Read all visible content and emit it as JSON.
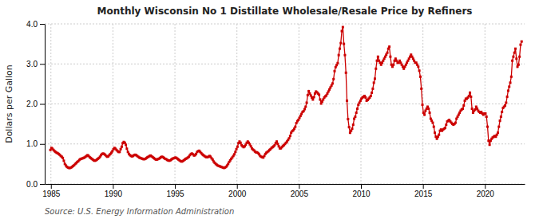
{
  "chart_data": {
    "type": "line",
    "title": "Monthly Wisconsin No 1 Distillate Wholesale/Resale Price by Refiners",
    "y_label": "Dollars per Gallon",
    "source": "Source: U.S. Energy Information Administration",
    "color": "#cc0000",
    "marker": "square",
    "grid": true,
    "xlim": [
      1984.5,
      2023.2
    ],
    "ylim": [
      0.0,
      4.0
    ],
    "xticks": [
      1985,
      1990,
      1995,
      2000,
      2005,
      2010,
      2015,
      2020
    ],
    "yticks": [
      {
        "value": 0.0,
        "label": "0.0"
      },
      {
        "value": 1.0,
        "label": "1.0"
      },
      {
        "value": 2.0,
        "label": "2.0"
      },
      {
        "value": 3.0,
        "label": "3.0"
      },
      {
        "value": 4.0,
        "label": "4.0"
      }
    ],
    "x": [
      1984.9583333333333,
      1985.0416666666667,
      1985.125,
      1985.2083333333333,
      1985.2916666666667,
      1985.375,
      1985.4583333333333,
      1985.5416666666667,
      1985.625,
      1985.7083333333333,
      1985.7916666666667,
      1985.875,
      1985.9583333333333,
      1986.0416666666667,
      1986.125,
      1986.2083333333333,
      1986.2916666666667,
      1986.375,
      1986.4583333333333,
      1986.5416666666667,
      1986.625,
      1986.7083333333333,
      1986.7916666666667,
      1986.875,
      1986.9583333333333,
      1987.0416666666667,
      1987.125,
      1987.2083333333333,
      1987.2916666666667,
      1987.375,
      1987.4583333333333,
      1987.5416666666667,
      1987.625,
      1987.7083333333333,
      1987.7916666666667,
      1987.875,
      1987.9583333333333,
      1988.0416666666667,
      1988.125,
      1988.2083333333333,
      1988.2916666666667,
      1988.375,
      1988.4583333333333,
      1988.5416666666667,
      1988.625,
      1988.7083333333333,
      1988.7916666666667,
      1988.875,
      1988.9583333333333,
      1989.0416666666667,
      1989.125,
      1989.2083333333333,
      1989.2916666666667,
      1989.375,
      1989.4583333333333,
      1989.5416666666667,
      1989.625,
      1989.7083333333333,
      1989.7916666666667,
      1989.875,
      1989.9583333333333,
      1990.0416666666667,
      1990.125,
      1990.2083333333333,
      1990.2916666666667,
      1990.375,
      1990.4583333333333,
      1990.5416666666667,
      1990.625,
      1990.7083333333333,
      1990.7916666666667,
      1990.875,
      1990.9583333333333,
      1991.0416666666667,
      1991.125,
      1991.2083333333333,
      1991.2916666666667,
      1991.375,
      1991.4583333333333,
      1991.5416666666667,
      1991.625,
      1991.7083333333333,
      1991.7916666666667,
      1991.875,
      1991.9583333333333,
      1992.0416666666667,
      1992.125,
      1992.2083333333333,
      1992.2916666666667,
      1992.375,
      1992.4583333333333,
      1992.5416666666667,
      1992.625,
      1992.7083333333333,
      1992.7916666666667,
      1992.875,
      1992.9583333333333,
      1993.0416666666667,
      1993.125,
      1993.2083333333333,
      1993.2916666666667,
      1993.375,
      1993.4583333333333,
      1993.5416666666667,
      1993.625,
      1993.7083333333333,
      1993.7916666666667,
      1993.875,
      1993.9583333333333,
      1994.0416666666667,
      1994.125,
      1994.2083333333333,
      1994.2916666666667,
      1994.375,
      1994.4583333333333,
      1994.5416666666667,
      1994.625,
      1994.7083333333333,
      1994.7916666666667,
      1994.875,
      1994.9583333333333,
      1995.0416666666667,
      1995.125,
      1995.2083333333333,
      1995.2916666666667,
      1995.375,
      1995.4583333333333,
      1995.5416666666667,
      1995.625,
      1995.7083333333333,
      1995.7916666666667,
      1995.875,
      1995.9583333333333,
      1996.0416666666667,
      1996.125,
      1996.2083333333333,
      1996.2916666666667,
      1996.375,
      1996.4583333333333,
      1996.5416666666667,
      1996.625,
      1996.7083333333333,
      1996.7916666666667,
      1996.875,
      1996.9583333333333,
      1997.0416666666667,
      1997.125,
      1997.2083333333333,
      1997.2916666666667,
      1997.375,
      1997.4583333333333,
      1997.5416666666667,
      1997.625,
      1997.7083333333333,
      1997.7916666666667,
      1997.875,
      1997.9583333333333,
      1998.0416666666667,
      1998.125,
      1998.2083333333333,
      1998.2916666666667,
      1998.375,
      1998.4583333333333,
      1998.5416666666667,
      1998.625,
      1998.7083333333333,
      1998.7916666666667,
      1998.875,
      1998.9583333333333,
      1999.0416666666667,
      1999.125,
      1999.2083333333333,
      1999.2916666666667,
      1999.375,
      1999.4583333333333,
      1999.5416666666667,
      1999.625,
      1999.7083333333333,
      1999.7916666666667,
      1999.875,
      1999.9583333333333,
      2000.0416666666667,
      2000.125,
      2000.2083333333333,
      2000.2916666666667,
      2000.375,
      2000.4583333333333,
      2000.5416666666667,
      2000.625,
      2000.7083333333333,
      2000.7916666666667,
      2000.875,
      2000.9583333333333,
      2001.0416666666667,
      2001.125,
      2001.2083333333333,
      2001.2916666666667,
      2001.375,
      2001.4583333333333,
      2001.5416666666667,
      2001.625,
      2001.7083333333333,
      2001.7916666666667,
      2001.875,
      2001.9583333333333,
      2002.0416666666667,
      2002.125,
      2002.2083333333333,
      2002.2916666666667,
      2002.375,
      2002.4583333333333,
      2002.5416666666667,
      2002.625,
      2002.7083333333333,
      2002.7916666666667,
      2002.875,
      2002.9583333333333,
      2003.0416666666667,
      2003.125,
      2003.2083333333333,
      2003.2916666666667,
      2003.375,
      2003.4583333333333,
      2003.5416666666667,
      2003.625,
      2003.7083333333333,
      2003.7916666666667,
      2003.875,
      2003.9583333333333,
      2004.0416666666667,
      2004.125,
      2004.2083333333333,
      2004.2916666666667,
      2004.375,
      2004.4583333333333,
      2004.5416666666667,
      2004.625,
      2004.7083333333333,
      2004.7916666666667,
      2004.875,
      2004.9583333333333,
      2005.0416666666667,
      2005.125,
      2005.2083333333333,
      2005.2916666666667,
      2005.375,
      2005.4583333333333,
      2005.5416666666667,
      2005.625,
      2005.7083333333333,
      2005.7916666666667,
      2005.875,
      2005.9583333333333,
      2006.0416666666667,
      2006.125,
      2006.2083333333333,
      2006.2916666666667,
      2006.375,
      2006.4583333333333,
      2006.5416666666667,
      2006.625,
      2006.7083333333333,
      2006.7916666666667,
      2006.875,
      2006.9583333333333,
      2007.0416666666667,
      2007.125,
      2007.2083333333333,
      2007.2916666666667,
      2007.375,
      2007.4583333333333,
      2007.5416666666667,
      2007.625,
      2007.7083333333333,
      2007.7916666666667,
      2007.875,
      2007.9583333333333,
      2008.0416666666667,
      2008.125,
      2008.2083333333333,
      2008.2916666666667,
      2008.375,
      2008.4583333333333,
      2008.5416666666667,
      2008.625,
      2008.7083333333333,
      2008.7916666666667,
      2008.875,
      2008.9583333333333,
      2009.0416666666667,
      2009.125,
      2009.2083333333333,
      2009.2916666666667,
      2009.375,
      2009.4583333333333,
      2009.5416666666667,
      2009.625,
      2009.7083333333333,
      2009.7916666666667,
      2009.875,
      2009.9583333333333,
      2010.0416666666667,
      2010.125,
      2010.2083333333333,
      2010.2916666666667,
      2010.375,
      2010.4583333333333,
      2010.5416666666667,
      2010.625,
      2010.7083333333333,
      2010.7916666666667,
      2010.875,
      2010.9583333333333,
      2011.0416666666667,
      2011.125,
      2011.2083333333333,
      2011.2916666666667,
      2011.375,
      2011.4583333333333,
      2011.5416666666667,
      2011.625,
      2011.7083333333333,
      2011.7916666666667,
      2011.875,
      2011.9583333333333,
      2012.0416666666667,
      2012.125,
      2012.2083333333333,
      2012.2916666666667,
      2012.375,
      2012.4583333333333,
      2012.5416666666667,
      2012.625,
      2012.7083333333333,
      2012.7916666666667,
      2012.875,
      2012.9583333333333,
      2013.0416666666667,
      2013.125,
      2013.2083333333333,
      2013.2916666666667,
      2013.375,
      2013.4583333333333,
      2013.5416666666667,
      2013.625,
      2013.7083333333333,
      2013.7916666666667,
      2013.875,
      2013.9583333333333,
      2014.0416666666667,
      2014.125,
      2014.2083333333333,
      2014.2916666666667,
      2014.375,
      2014.4583333333333,
      2014.5416666666667,
      2014.625,
      2014.7083333333333,
      2014.7916666666667,
      2014.875,
      2014.9583333333333,
      2015.0416666666667,
      2015.125,
      2015.2083333333333,
      2015.2916666666667,
      2015.375,
      2015.4583333333333,
      2015.5416666666667,
      2015.625,
      2015.7083333333333,
      2015.7916666666667,
      2015.875,
      2015.9583333333333,
      2016.0416666666667,
      2016.125,
      2016.2083333333333,
      2016.2916666666667,
      2016.375,
      2016.4583333333333,
      2016.5416666666667,
      2016.625,
      2016.7083333333333,
      2016.7916666666667,
      2016.875,
      2016.9583333333333,
      2017.0416666666667,
      2017.125,
      2017.2083333333333,
      2017.2916666666667,
      2017.375,
      2017.4583333333333,
      2017.5416666666667,
      2017.625,
      2017.7083333333333,
      2017.7916666666667,
      2017.875,
      2017.9583333333333,
      2018.0416666666667,
      2018.125,
      2018.2083333333333,
      2018.2916666666667,
      2018.375,
      2018.4583333333333,
      2018.5416666666667,
      2018.625,
      2018.7083333333333,
      2018.7916666666667,
      2018.875,
      2018.9583333333333,
      2019.0416666666667,
      2019.125,
      2019.2083333333333,
      2019.2916666666667,
      2019.375,
      2019.4583333333333,
      2019.5416666666667,
      2019.625,
      2019.7083333333333,
      2019.7916666666667,
      2019.875,
      2019.9583333333333,
      2020.0416666666667,
      2020.125,
      2020.2083333333333,
      2020.2916666666667,
      2020.375,
      2020.4583333333333,
      2020.5416666666667,
      2020.625,
      2020.7083333333333,
      2020.7916666666667,
      2020.875,
      2020.9583333333333,
      2021.0416666666667,
      2021.125,
      2021.2083333333333,
      2021.2916666666667,
      2021.375,
      2021.4583333333333,
      2021.5416666666667,
      2021.625,
      2021.7083333333333,
      2021.7916666666667,
      2021.875,
      2021.9583333333333,
      2022.0416666666667,
      2022.125,
      2022.2083333333333,
      2022.2916666666667,
      2022.375,
      2022.4583333333333,
      2022.5416666666667,
      2022.625,
      2022.7083333333333,
      2022.7916666666667,
      2022.875,
      2022.9583333333333
    ],
    "values": [
      0.85,
      0.9,
      0.88,
      0.85,
      0.82,
      0.8,
      0.78,
      0.77,
      0.75,
      0.73,
      0.7,
      0.68,
      0.65,
      0.58,
      0.5,
      0.46,
      0.43,
      0.41,
      0.4,
      0.4,
      0.41,
      0.43,
      0.45,
      0.47,
      0.5,
      0.52,
      0.55,
      0.57,
      0.6,
      0.62,
      0.63,
      0.64,
      0.65,
      0.66,
      0.68,
      0.7,
      0.72,
      0.7,
      0.67,
      0.65,
      0.63,
      0.61,
      0.59,
      0.58,
      0.59,
      0.61,
      0.63,
      0.65,
      0.68,
      0.72,
      0.75,
      0.76,
      0.75,
      0.73,
      0.7,
      0.68,
      0.69,
      0.72,
      0.75,
      0.78,
      0.82,
      0.87,
      0.9,
      0.88,
      0.85,
      0.82,
      0.8,
      0.8,
      0.87,
      0.93,
      1.02,
      1.05,
      1.03,
      0.98,
      0.88,
      0.8,
      0.75,
      0.72,
      0.7,
      0.69,
      0.7,
      0.72,
      0.73,
      0.72,
      0.7,
      0.68,
      0.66,
      0.65,
      0.64,
      0.63,
      0.62,
      0.62,
      0.63,
      0.65,
      0.67,
      0.68,
      0.7,
      0.71,
      0.69,
      0.67,
      0.65,
      0.63,
      0.61,
      0.61,
      0.62,
      0.63,
      0.65,
      0.67,
      0.68,
      0.67,
      0.65,
      0.63,
      0.62,
      0.6,
      0.59,
      0.58,
      0.59,
      0.61,
      0.63,
      0.64,
      0.65,
      0.66,
      0.65,
      0.63,
      0.61,
      0.59,
      0.57,
      0.56,
      0.57,
      0.59,
      0.61,
      0.63,
      0.64,
      0.66,
      0.68,
      0.72,
      0.75,
      0.76,
      0.74,
      0.71,
      0.72,
      0.75,
      0.8,
      0.82,
      0.83,
      0.8,
      0.77,
      0.74,
      0.72,
      0.7,
      0.68,
      0.67,
      0.67,
      0.68,
      0.7,
      0.68,
      0.64,
      0.61,
      0.56,
      0.53,
      0.5,
      0.48,
      0.46,
      0.45,
      0.44,
      0.43,
      0.42,
      0.41,
      0.4,
      0.41,
      0.43,
      0.46,
      0.5,
      0.55,
      0.59,
      0.63,
      0.66,
      0.7,
      0.74,
      0.8,
      0.87,
      0.93,
      1.02,
      1.06,
      1.03,
      0.97,
      0.94,
      0.92,
      0.94,
      0.98,
      1.03,
      1.06,
      1.03,
      0.99,
      0.94,
      0.89,
      0.86,
      0.84,
      0.81,
      0.79,
      0.79,
      0.77,
      0.74,
      0.7,
      0.68,
      0.67,
      0.66,
      0.7,
      0.75,
      0.78,
      0.8,
      0.82,
      0.85,
      0.87,
      0.9,
      0.92,
      0.94,
      0.97,
      1.02,
      1.06,
      1.0,
      0.94,
      0.89,
      0.89,
      0.92,
      0.95,
      0.97,
      1.0,
      1.03,
      1.06,
      1.1,
      1.14,
      1.2,
      1.28,
      1.32,
      1.34,
      1.38,
      1.43,
      1.52,
      1.57,
      1.6,
      1.65,
      1.7,
      1.75,
      1.8,
      1.82,
      1.87,
      1.93,
      2.03,
      2.22,
      2.32,
      2.26,
      2.21,
      2.16,
      2.11,
      2.17,
      2.26,
      2.31,
      2.29,
      2.26,
      2.23,
      2.11,
      2.01,
      2.06,
      2.11,
      2.16,
      2.19,
      2.21,
      2.26,
      2.31,
      2.36,
      2.41,
      2.46,
      2.51,
      2.62,
      2.82,
      2.92,
      2.97,
      3.02,
      3.22,
      3.38,
      3.52,
      3.82,
      3.92,
      3.5,
      3.22,
      2.78,
      2.08,
      1.62,
      1.42,
      1.28,
      1.33,
      1.38,
      1.48,
      1.63,
      1.68,
      1.78,
      1.88,
      1.98,
      2.03,
      2.08,
      2.13,
      2.16,
      2.18,
      2.2,
      2.16,
      2.08,
      2.1,
      2.13,
      2.16,
      2.2,
      2.28,
      2.38,
      2.53,
      2.63,
      2.88,
      3.08,
      3.18,
      3.08,
      3.03,
      2.98,
      3.03,
      3.08,
      3.13,
      3.18,
      3.23,
      3.28,
      3.38,
      3.43,
      3.18,
      2.98,
      2.93,
      2.98,
      3.08,
      3.13,
      3.08,
      3.03,
      3.03,
      3.08,
      3.03,
      2.98,
      2.93,
      2.88,
      2.93,
      2.98,
      3.03,
      3.08,
      3.13,
      3.18,
      3.23,
      3.18,
      3.13,
      3.08,
      3.03,
      3.03,
      2.98,
      2.93,
      2.83,
      2.68,
      2.38,
      1.98,
      1.78,
      1.73,
      1.83,
      1.88,
      1.93,
      1.88,
      1.78,
      1.63,
      1.58,
      1.53,
      1.43,
      1.28,
      1.18,
      1.13,
      1.18,
      1.23,
      1.33,
      1.36,
      1.33,
      1.36,
      1.38,
      1.4,
      1.48,
      1.56,
      1.58,
      1.6,
      1.56,
      1.53,
      1.5,
      1.48,
      1.5,
      1.53,
      1.63,
      1.68,
      1.73,
      1.78,
      1.83,
      1.86,
      1.88,
      1.96,
      2.08,
      2.13,
      2.13,
      2.16,
      2.2,
      2.28,
      2.18,
      1.88,
      1.78,
      1.83,
      1.86,
      1.93,
      1.88,
      1.83,
      1.8,
      1.78,
      1.8,
      1.76,
      1.73,
      1.76,
      1.76,
      1.68,
      1.43,
      1.08,
      0.98,
      1.08,
      1.13,
      1.16,
      1.18,
      1.2,
      1.18,
      1.23,
      1.28,
      1.43,
      1.58,
      1.68,
      1.8,
      1.9,
      1.93,
      1.96,
      2.03,
      2.18,
      2.33,
      2.43,
      2.53,
      2.68,
      3.08,
      3.18,
      3.28,
      3.38,
      3.13,
      2.93,
      2.98,
      3.18,
      3.48,
      3.56
    ]
  }
}
